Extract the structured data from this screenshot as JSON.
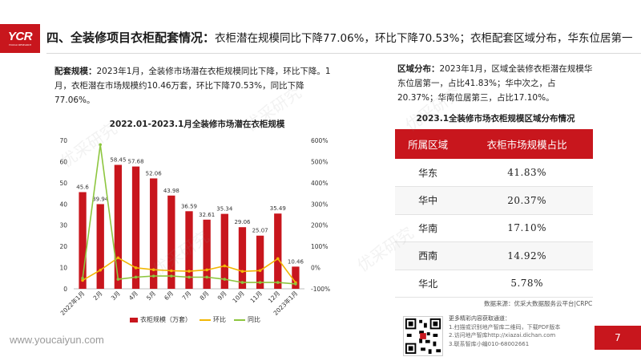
{
  "logo": {
    "main": "YCR",
    "sub": "YOUCAI RESEARCH"
  },
  "header": {
    "lead": "四、全装修项目衣柜配套情况：",
    "rest": "衣柜潜在规模同比下降77.06%，环比下降70.53%；衣柜配套区域分布，华东位居第一"
  },
  "left_text": {
    "label": "配套规模：",
    "body": "2023年1月，全装修市场潜在衣柜规模同比下降，环比下降。1月，衣柜潜在市场规模约10.46万套，环比下降70.53%，同比下降77.06%。"
  },
  "right_text": {
    "label": "区域分布：",
    "body": "2023年1月，区域全装修衣柜潜在规模华东位居第一，占比41.83%；华中次之，占20.37%；华南位居第三，占比17.10%。"
  },
  "chart_data": {
    "type": "bar",
    "title": "2022.01-2023.1月全装修市场潜在衣柜规模",
    "categories": [
      "2022年1月",
      "2月",
      "3月",
      "4月",
      "5月",
      "6月",
      "7月",
      "8月",
      "9月",
      "10月",
      "11月",
      "12月",
      "2023年1月"
    ],
    "series": [
      {
        "name": "衣柜规模（万套）",
        "type": "bar",
        "axis": "left",
        "color": "#c8161d",
        "values": [
          45.6,
          39.94,
          58.45,
          57.68,
          52.06,
          43.98,
          36.59,
          32.61,
          35.34,
          29.06,
          25.07,
          35.49,
          10.46
        ]
      },
      {
        "name": "环比",
        "type": "line",
        "axis": "right",
        "color": "#f2b705",
        "values": [
          -60,
          -12,
          46,
          -1,
          -10,
          -15,
          -17,
          -11,
          8,
          -18,
          -14,
          42,
          -71
        ]
      },
      {
        "name": "同比",
        "type": "line",
        "axis": "right",
        "color": "#8dc63f",
        "values": [
          -50,
          580,
          -55,
          -45,
          -40,
          -40,
          -45,
          -45,
          -55,
          -70,
          -70,
          -70,
          -77
        ]
      }
    ],
    "y_left": {
      "min": 0,
      "max": 70,
      "ticks": [
        0,
        10,
        20,
        30,
        40,
        50,
        60,
        70
      ]
    },
    "y_right": {
      "min": -100,
      "max": 600,
      "ticks": [
        "-100%",
        "0%",
        "100%",
        "200%",
        "300%",
        "400%",
        "500%",
        "600%"
      ]
    },
    "legend": [
      "衣柜规模（万套）",
      "环比",
      "同比"
    ]
  },
  "table": {
    "title": "2023.1全装修市场衣柜规模区域分布情况",
    "headers": [
      "所属区域",
      "衣柜市场规模占比"
    ],
    "rows": [
      {
        "region": "华东",
        "value": "41.83%"
      },
      {
        "region": "华中",
        "value": "20.37%"
      },
      {
        "region": "华南",
        "value": "17.10%"
      },
      {
        "region": "西南",
        "value": "14.92%"
      },
      {
        "region": "华北",
        "value": "5.78%"
      }
    ]
  },
  "source": "数据来源：优采大数据服务云平台|CRPC",
  "website": "www.youcaiyun.com",
  "qr_info": {
    "head": "更多精彩内容获取通道：",
    "line1": "1.扫描或识别地产智库二维码，下载PDF版本",
    "line2": "2.访问地产智库http://xiazai.dichan.com",
    "line3": "3.联系智库小编010-68002661"
  },
  "page_number": "7",
  "watermark": "优采研究"
}
